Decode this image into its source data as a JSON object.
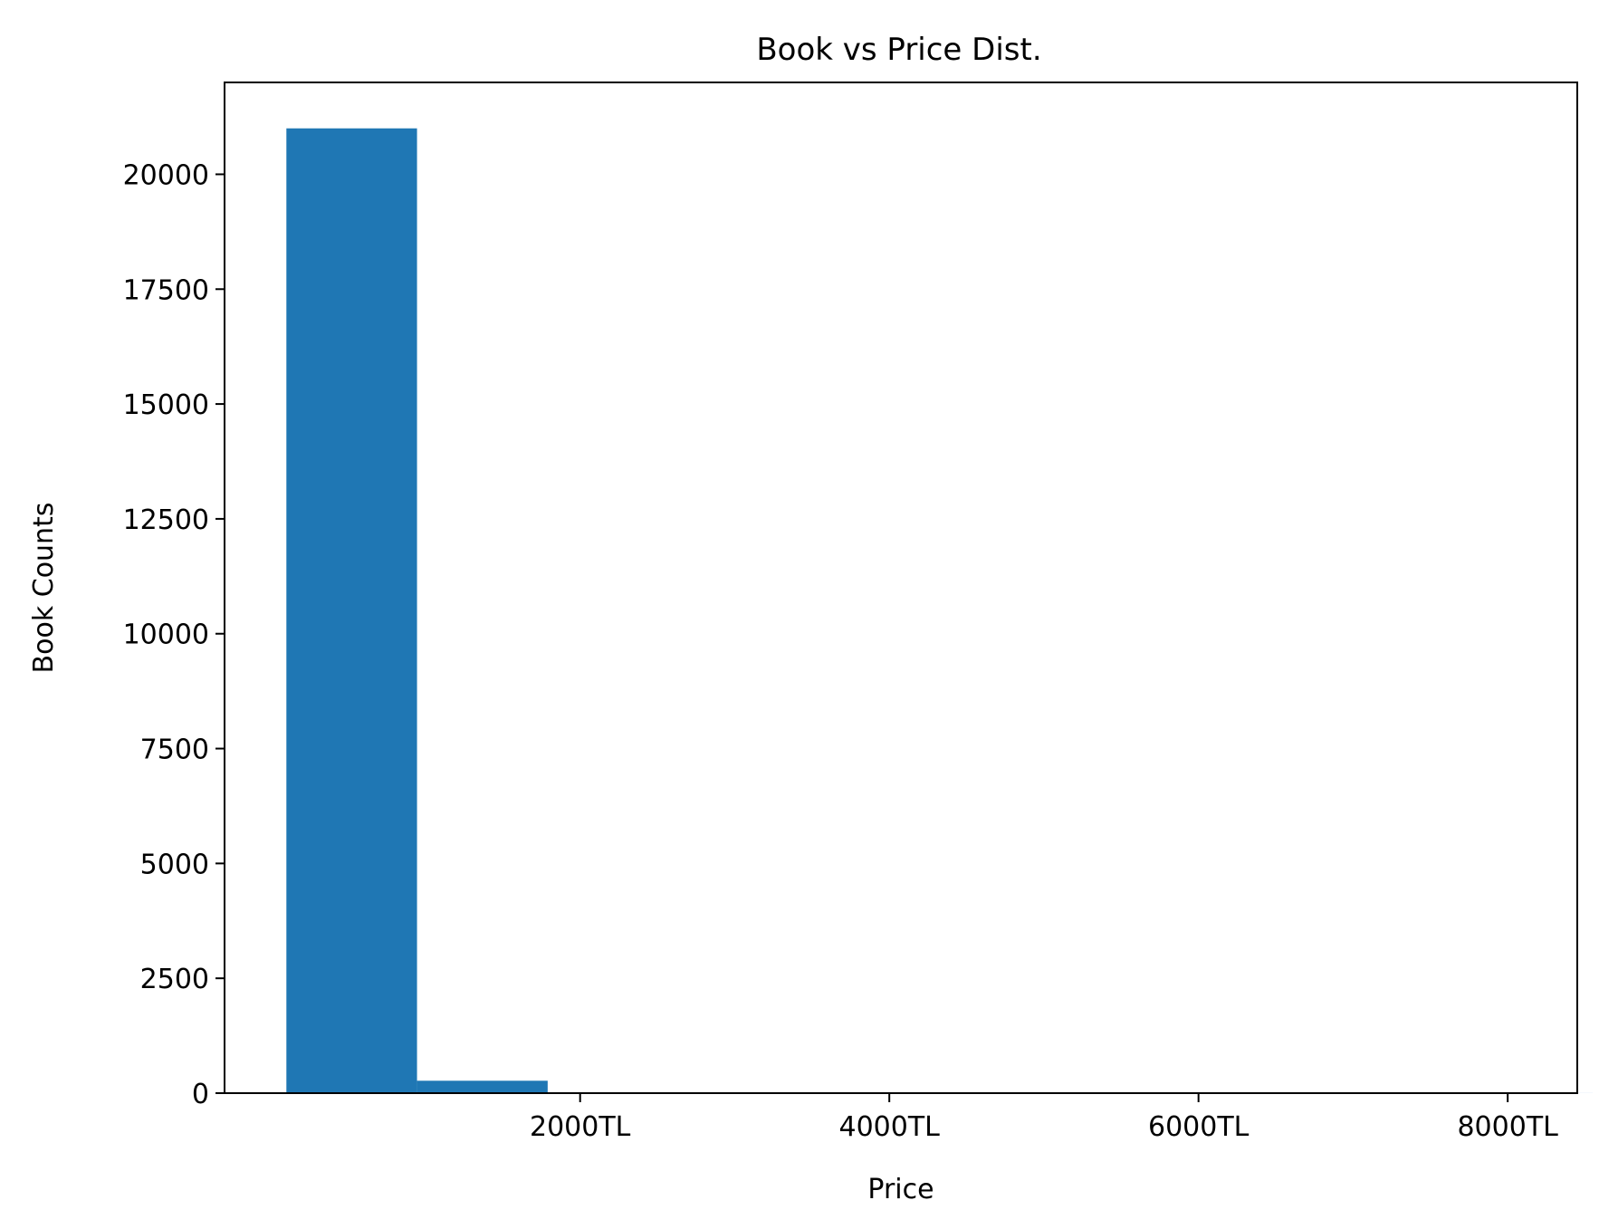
{
  "chart_data": {
    "type": "bar",
    "title": "Book vs Price Dist.",
    "xlabel": "Price",
    "ylabel": "Book Counts",
    "xlim": [
      -300,
      8450
    ],
    "ylim": [
      0,
      22000
    ],
    "bins": [
      {
        "x_start": 100,
        "x_end": 945,
        "count": 21000
      },
      {
        "x_start": 945,
        "x_end": 1790,
        "count": 270
      },
      {
        "x_start": 1790,
        "x_end": 2635,
        "count": 12
      },
      {
        "x_start": 2635,
        "x_end": 3480,
        "count": 4
      },
      {
        "x_start": 3480,
        "x_end": 4325,
        "count": 2
      },
      {
        "x_start": 4325,
        "x_end": 5170,
        "count": 1
      },
      {
        "x_start": 5170,
        "x_end": 6015,
        "count": 1
      },
      {
        "x_start": 6015,
        "x_end": 6860,
        "count": 0
      },
      {
        "x_start": 6860,
        "x_end": 7705,
        "count": 0
      },
      {
        "x_start": 7705,
        "x_end": 8550,
        "count": 1
      }
    ],
    "xticks": [
      {
        "value": 2000,
        "label": "2000TL"
      },
      {
        "value": 4000,
        "label": "4000TL"
      },
      {
        "value": 6000,
        "label": "6000TL"
      },
      {
        "value": 8000,
        "label": "8000TL"
      }
    ],
    "yticks": [
      {
        "value": 0,
        "label": "0"
      },
      {
        "value": 2500,
        "label": "2500"
      },
      {
        "value": 5000,
        "label": "5000"
      },
      {
        "value": 7500,
        "label": "7500"
      },
      {
        "value": 10000,
        "label": "10000"
      },
      {
        "value": 12500,
        "label": "12500"
      },
      {
        "value": 15000,
        "label": "15000"
      },
      {
        "value": 17500,
        "label": "17500"
      },
      {
        "value": 20000,
        "label": "20000"
      }
    ],
    "bar_color": "#1f77b4",
    "grid": false,
    "legend": "none"
  }
}
